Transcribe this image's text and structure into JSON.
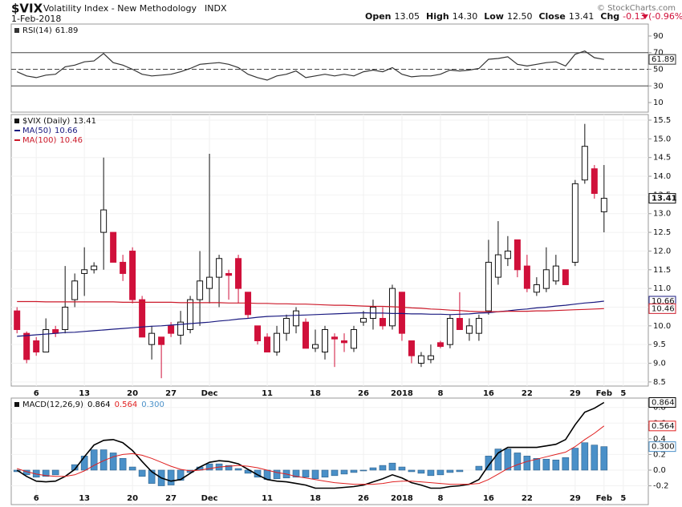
{
  "header": {
    "symbol": "$VIX",
    "name": "Volatility Index - New Methodology",
    "exchange": "INDX",
    "date": "1-Feb-2018",
    "quote": [
      {
        "label": "Open",
        "value": "13.05"
      },
      {
        "label": "High",
        "value": "14.30"
      },
      {
        "label": "Low",
        "value": "12.50"
      },
      {
        "label": "Close",
        "value": "13.41"
      },
      {
        "label": "Chg",
        "value": "-0.13 (-0.96%)"
      }
    ],
    "copyright": "© StockCharts.com"
  },
  "chart_data": [
    {
      "type": "line",
      "xlim": [
        -0.6,
        65.6
      ],
      "ylim": [
        -1.5,
        104.4
      ],
      "yticks": [
        10,
        30,
        50,
        70,
        90
      ],
      "levels": [
        70,
        50,
        30
      ],
      "series": [
        {
          "name": "RSI(14)",
          "color": "#333333",
          "values": [
            47,
            42,
            40,
            43,
            44,
            53,
            55,
            59,
            60,
            69,
            58,
            55,
            50,
            44,
            42,
            43,
            44,
            47,
            51,
            56,
            57,
            58,
            56,
            52,
            44,
            40,
            37,
            42,
            44,
            48,
            40,
            42,
            44,
            42,
            44,
            42,
            47,
            49,
            47,
            52,
            44,
            41,
            42,
            42,
            44,
            49,
            48,
            49,
            51,
            62,
            63,
            65,
            56,
            54,
            56,
            58,
            59,
            54,
            68,
            72,
            64,
            61.89
          ]
        }
      ]
    },
    {
      "type": "candlestick",
      "name": "$VIX (Daily)",
      "up_color": "#ffffff",
      "down_color": "#d0103a",
      "grid": true,
      "xlim": [
        -0.6,
        65.6
      ],
      "ylim": [
        8.39,
        15.65
      ],
      "yticks": [
        {
          "value": 8.5,
          "label": "8.5"
        },
        {
          "value": 9,
          "label": "9.0"
        },
        9.5,
        {
          "value": 10,
          "label": "10.0"
        },
        10.5,
        {
          "value": 11,
          "label": "11.0"
        },
        11.5,
        {
          "value": 12,
          "label": "12.0"
        },
        12.5,
        {
          "value": 13,
          "label": "13.0"
        },
        13.5,
        {
          "value": 14,
          "label": "14.0"
        },
        14.5,
        {
          "value": 15,
          "label": "15.0"
        },
        15.5
      ],
      "xticks": [
        {
          "value": 2,
          "label": "6"
        },
        {
          "value": 7,
          "label": "13"
        },
        {
          "value": 12,
          "label": "20"
        },
        {
          "value": 16,
          "label": "27"
        },
        {
          "value": 20,
          "label": "Dec"
        },
        {
          "value": 26,
          "label": "11"
        },
        {
          "value": 31,
          "label": "18"
        },
        {
          "value": 36,
          "label": "26"
        },
        {
          "value": 40,
          "label": "2018"
        },
        {
          "value": 44,
          "label": "8"
        },
        {
          "value": 49,
          "label": "16"
        },
        {
          "value": 53,
          "label": "22"
        },
        {
          "value": 58,
          "label": "29"
        },
        {
          "value": 61,
          "label": "Feb"
        },
        {
          "value": 63,
          "label": "5"
        }
      ],
      "open": [
        10.4,
        9.8,
        9.6,
        9.3,
        9.9,
        9.9,
        10.7,
        11.4,
        11.5,
        12.5,
        12.5,
        11.7,
        12.0,
        10.7,
        9.5,
        9.7,
        10.0,
        9.75,
        9.9,
        10.7,
        11.0,
        11.3,
        11.4,
        11.8,
        10.9,
        10.0,
        9.7,
        9.3,
        9.8,
        10.0,
        10.1,
        9.4,
        9.3,
        9.7,
        9.6,
        9.4,
        10.1,
        10.2,
        10.2,
        10.0,
        10.9,
        9.6,
        9.0,
        9.1,
        9.55,
        9.5,
        10.2,
        9.8,
        9.8,
        10.4,
        11.3,
        11.8,
        12.3,
        11.6,
        10.9,
        11.0,
        11.2,
        11.5,
        11.7,
        13.9,
        14.2,
        13.05
      ],
      "high": [
        10.5,
        9.85,
        9.7,
        10.2,
        10.0,
        11.6,
        11.4,
        12.1,
        11.7,
        14.5,
        12.5,
        11.9,
        12.1,
        10.8,
        10.0,
        9.7,
        10.1,
        10.4,
        10.8,
        12.0,
        14.6,
        11.9,
        11.5,
        11.9,
        10.9,
        10.0,
        9.8,
        10.0,
        10.3,
        10.5,
        10.2,
        9.9,
        10.0,
        9.8,
        9.8,
        10.0,
        10.4,
        10.7,
        10.5,
        11.1,
        10.9,
        9.6,
        9.3,
        9.5,
        9.6,
        10.3,
        10.9,
        10.2,
        10.3,
        12.3,
        12.8,
        12.4,
        12.3,
        11.9,
        11.3,
        12.1,
        11.9,
        11.5,
        13.9,
        15.4,
        14.3,
        14.3
      ],
      "low": [
        9.8,
        9.0,
        9.2,
        9.3,
        9.7,
        9.8,
        10.5,
        10.8,
        11.4,
        11.5,
        11.7,
        11.2,
        10.6,
        9.7,
        9.1,
        8.6,
        9.7,
        9.5,
        9.8,
        10.0,
        10.6,
        10.5,
        10.7,
        10.6,
        10.2,
        9.5,
        9.3,
        9.2,
        9.6,
        9.8,
        9.4,
        9.3,
        9.1,
        8.9,
        9.3,
        9.3,
        10.0,
        9.9,
        9.9,
        9.9,
        9.6,
        9.0,
        8.9,
        9.0,
        9.4,
        9.4,
        9.9,
        9.6,
        9.6,
        10.3,
        11.1,
        11.6,
        11.3,
        10.9,
        10.8,
        10.9,
        11.1,
        11.1,
        11.6,
        13.8,
        13.4,
        12.5
      ],
      "close": [
        9.9,
        9.1,
        9.3,
        9.9,
        9.8,
        10.5,
        11.2,
        11.5,
        11.6,
        13.1,
        11.7,
        11.4,
        10.7,
        9.7,
        9.8,
        9.5,
        9.8,
        10.1,
        10.7,
        11.2,
        11.3,
        11.8,
        11.35,
        11.0,
        10.3,
        9.6,
        9.3,
        9.8,
        10.2,
        10.4,
        9.4,
        9.5,
        9.9,
        9.65,
        9.55,
        9.9,
        10.2,
        10.5,
        10.0,
        11.0,
        9.8,
        9.2,
        9.2,
        9.2,
        9.45,
        10.2,
        9.9,
        10.0,
        10.2,
        11.7,
        11.9,
        12.0,
        11.5,
        11.0,
        11.1,
        11.5,
        11.6,
        11.1,
        13.8,
        14.8,
        13.54,
        13.41
      ],
      "overlays": [
        {
          "name": "MA(50)",
          "color": "#1a1a80",
          "values": [
            9.72,
            9.74,
            9.76,
            9.78,
            9.8,
            9.82,
            9.83,
            9.85,
            9.87,
            9.89,
            9.91,
            9.93,
            9.95,
            9.97,
            9.99,
            10.0,
            10.02,
            10.04,
            10.06,
            10.08,
            10.1,
            10.13,
            10.15,
            10.18,
            10.2,
            10.23,
            10.25,
            10.26,
            10.27,
            10.28,
            10.29,
            10.3,
            10.31,
            10.32,
            10.33,
            10.34,
            10.35,
            10.34,
            10.34,
            10.33,
            10.33,
            10.32,
            10.32,
            10.31,
            10.31,
            10.3,
            10.31,
            10.32,
            10.34,
            10.35,
            10.38,
            10.4,
            10.43,
            10.45,
            10.48,
            10.5,
            10.53,
            10.55,
            10.58,
            10.61,
            10.63,
            10.66
          ]
        },
        {
          "name": "MA(100)",
          "color": "#cc1a2a",
          "values": [
            10.65,
            10.65,
            10.65,
            10.64,
            10.64,
            10.64,
            10.64,
            10.64,
            10.64,
            10.64,
            10.64,
            10.63,
            10.63,
            10.63,
            10.63,
            10.63,
            10.63,
            10.62,
            10.62,
            10.62,
            10.62,
            10.62,
            10.61,
            10.61,
            10.61,
            10.6,
            10.6,
            10.59,
            10.59,
            10.58,
            10.58,
            10.57,
            10.56,
            10.55,
            10.55,
            10.54,
            10.53,
            10.52,
            10.52,
            10.51,
            10.5,
            10.48,
            10.47,
            10.45,
            10.44,
            10.42,
            10.41,
            10.39,
            10.38,
            10.38,
            10.38,
            10.39,
            10.39,
            10.39,
            10.4,
            10.4,
            10.41,
            10.42,
            10.43,
            10.44,
            10.45,
            10.46
          ]
        }
      ]
    },
    {
      "type": "macd",
      "grid": true,
      "xlim": [
        -0.6,
        65.6
      ],
      "ylim": [
        -0.44,
        0.92
      ],
      "yticks": [
        {
          "value": -0.2,
          "label": "-0.2"
        },
        {
          "value": 0,
          "label": "0.0"
        },
        0.2,
        0.4,
        0.6,
        0.8
      ],
      "xticks": [
        {
          "value": 2,
          "label": "6"
        },
        {
          "value": 7,
          "label": "13"
        },
        {
          "value": 12,
          "label": "20"
        },
        {
          "value": 16,
          "label": "27"
        },
        {
          "value": 20,
          "label": "Dec"
        },
        {
          "value": 26,
          "label": "11"
        },
        {
          "value": 31,
          "label": "18"
        },
        {
          "value": 36,
          "label": "26"
        },
        {
          "value": 40,
          "label": "2018"
        },
        {
          "value": 44,
          "label": "8"
        },
        {
          "value": 49,
          "label": "16"
        },
        {
          "value": 53,
          "label": "22"
        },
        {
          "value": 58,
          "label": "29"
        },
        {
          "value": 61,
          "label": "Feb"
        },
        {
          "value": 63,
          "label": "5"
        }
      ],
      "series": [
        {
          "name": "MACD(12,26,9)",
          "color": "#000000",
          "values": [
            0.0,
            -0.08,
            -0.14,
            -0.15,
            -0.14,
            -0.08,
            0.01,
            0.17,
            0.32,
            0.38,
            0.39,
            0.35,
            0.25,
            0.11,
            -0.02,
            -0.1,
            -0.14,
            -0.12,
            -0.04,
            0.04,
            0.1,
            0.12,
            0.11,
            0.08,
            0.01,
            -0.06,
            -0.12,
            -0.14,
            -0.15,
            -0.17,
            -0.19,
            -0.23,
            -0.23,
            -0.23,
            -0.22,
            -0.21,
            -0.19,
            -0.15,
            -0.11,
            -0.06,
            -0.1,
            -0.16,
            -0.19,
            -0.23,
            -0.23,
            -0.21,
            -0.2,
            -0.18,
            -0.12,
            0.06,
            0.22,
            0.29,
            0.29,
            0.29,
            0.29,
            0.31,
            0.33,
            0.39,
            0.58,
            0.74,
            0.79,
            0.864
          ]
        },
        {
          "color": "#e02020",
          "values": [
            0.02,
            -0.02,
            -0.05,
            -0.07,
            -0.08,
            -0.08,
            -0.06,
            -0.01,
            0.06,
            0.12,
            0.17,
            0.2,
            0.21,
            0.19,
            0.15,
            0.1,
            0.05,
            0.01,
            -0.01,
            0.0,
            0.02,
            0.04,
            0.05,
            0.06,
            0.05,
            0.03,
            0.0,
            -0.03,
            -0.05,
            -0.08,
            -0.1,
            -0.12,
            -0.14,
            -0.16,
            -0.17,
            -0.18,
            -0.18,
            -0.18,
            -0.17,
            -0.15,
            -0.14,
            -0.14,
            -0.15,
            -0.16,
            -0.17,
            -0.18,
            -0.18,
            -0.18,
            -0.17,
            -0.12,
            -0.05,
            0.02,
            0.07,
            0.11,
            0.14,
            0.17,
            0.2,
            0.23,
            0.3,
            0.39,
            0.47,
            0.564
          ]
        }
      ],
      "histogram": {
        "color": "#4a90c8",
        "values": [
          -0.02,
          -0.06,
          -0.09,
          -0.08,
          -0.06,
          0.0,
          0.07,
          0.18,
          0.26,
          0.26,
          0.22,
          0.15,
          0.04,
          -0.08,
          -0.17,
          -0.2,
          -0.19,
          -0.13,
          -0.03,
          0.04,
          0.08,
          0.08,
          0.06,
          0.02,
          -0.04,
          -0.09,
          -0.12,
          -0.11,
          -0.1,
          -0.09,
          -0.09,
          -0.11,
          -0.09,
          -0.07,
          -0.05,
          -0.03,
          -0.01,
          0.03,
          0.06,
          0.09,
          0.04,
          -0.02,
          -0.04,
          -0.07,
          -0.06,
          -0.03,
          -0.02,
          0.0,
          0.05,
          0.18,
          0.27,
          0.27,
          0.22,
          0.18,
          0.15,
          0.14,
          0.13,
          0.16,
          0.28,
          0.35,
          0.32,
          0.3
        ],
        "value_labels": [
          null,
          null,
          null,
          null,
          null,
          null,
          null,
          null,
          null,
          null,
          null,
          null,
          null,
          null,
          null,
          null,
          null,
          null,
          null,
          null,
          null,
          null,
          null,
          null,
          null,
          null,
          null,
          null,
          null,
          null,
          null,
          null,
          null,
          null,
          null,
          null,
          null,
          null,
          null,
          null,
          null,
          null,
          null,
          null,
          null,
          null,
          null,
          null,
          null,
          null,
          null,
          null,
          null,
          null,
          null,
          null,
          null,
          null,
          null,
          null,
          null,
          "0.300"
        ]
      }
    }
  ]
}
